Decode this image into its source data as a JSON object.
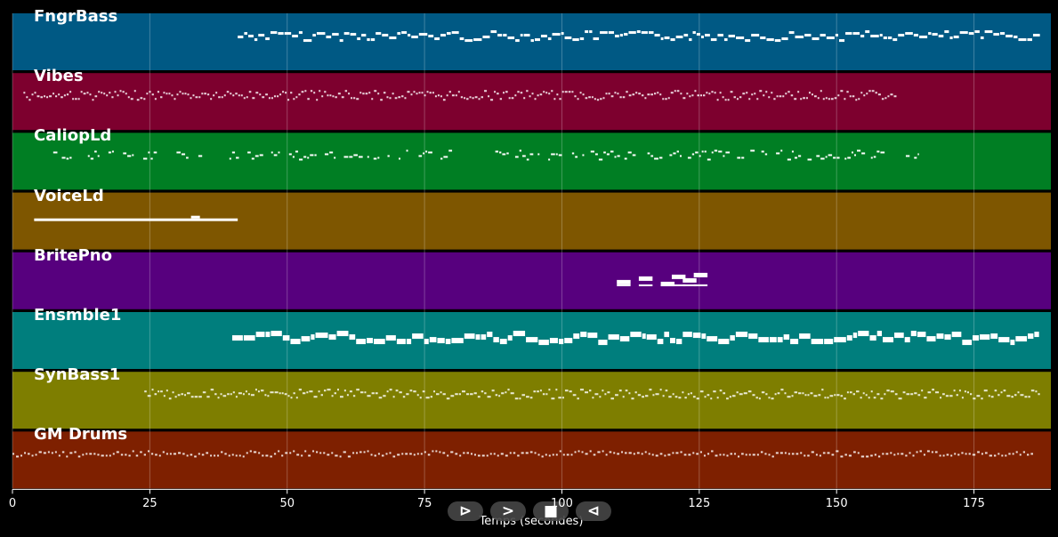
{
  "chart_data": {
    "type": "piano-roll",
    "xlabel": "Temps (secondes)",
    "xlim": [
      0,
      189
    ],
    "xticks": [
      0,
      25,
      50,
      75,
      100,
      125,
      150,
      175
    ],
    "grid": true,
    "tracks": [
      {
        "name": "FngrBass",
        "color": "#005984",
        "start": 41,
        "end": 187,
        "style": "bass"
      },
      {
        "name": "Vibes",
        "color": "#7d002e",
        "start": 2,
        "end": 161,
        "style": "dense"
      },
      {
        "name": "CaliopLd",
        "color": "#007e23",
        "start": 6,
        "end": 165,
        "style": "sparse"
      },
      {
        "name": "VoiceLd",
        "color": "#7e5600",
        "start": 2,
        "end": 41,
        "style": "voice"
      },
      {
        "name": "BritePno",
        "color": "#57007e",
        "start": 110,
        "end": 126,
        "style": "piano"
      },
      {
        "name": "Ensmble1",
        "color": "#007e7d",
        "start": 40,
        "end": 187,
        "style": "ensemble"
      },
      {
        "name": "SynBass1",
        "color": "#7e7e00",
        "start": 24,
        "end": 187,
        "style": "synbass"
      },
      {
        "name": "GM Drums",
        "color": "#7e2000",
        "start": 0,
        "end": 186,
        "style": "drums"
      }
    ]
  },
  "controls": {
    "play": "⊳",
    "forward": ">",
    "stop": "■",
    "back": "⊲"
  }
}
